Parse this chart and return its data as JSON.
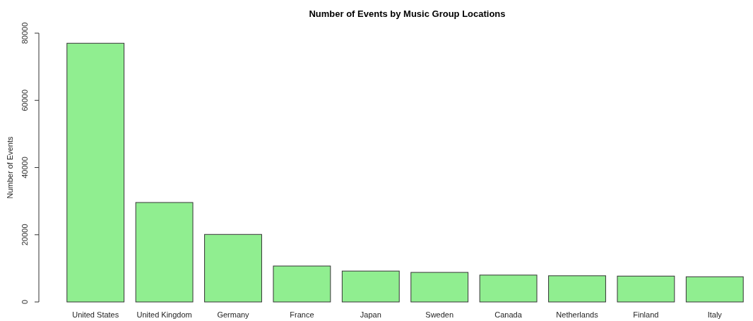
{
  "chart_data": {
    "type": "bar",
    "title": "Number of Events by Music Group Locations",
    "ylabel": "Number of Events",
    "categories": [
      "United States",
      "United Kingdom",
      "Germany",
      "France",
      "Japan",
      "Sweden",
      "Canada",
      "Netherlands",
      "Finland",
      "Italy"
    ],
    "values": [
      77000,
      29600,
      20100,
      10700,
      9200,
      8800,
      8000,
      7800,
      7700,
      7500
    ],
    "color": "#90ee90",
    "ylim": [
      0,
      80000
    ],
    "yticks": [
      0,
      20000,
      40000,
      60000,
      80000
    ],
    "grid": false
  }
}
